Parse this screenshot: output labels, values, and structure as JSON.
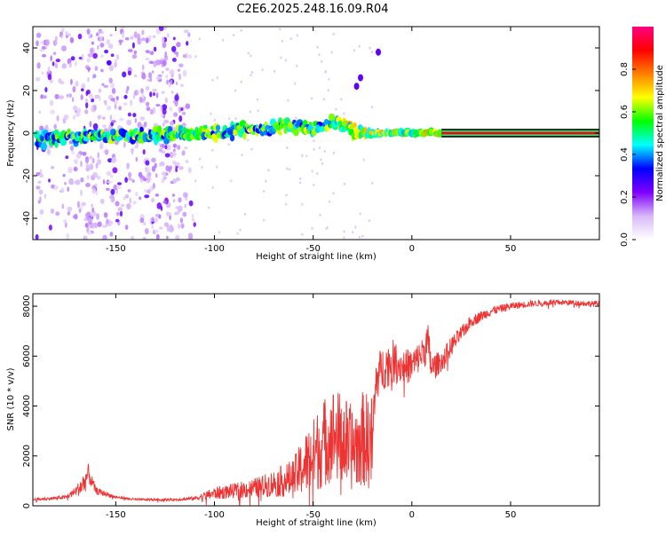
{
  "title": "C2E6.2025.248.16.09.R04",
  "chart_data": [
    {
      "type": "heatmap",
      "name": "spectrogram",
      "xlabel": "Height of straight line (km)",
      "ylabel": "Frequency (Hz)",
      "xlim": [
        -192,
        95
      ],
      "ylim": [
        -50,
        50
      ],
      "xticks": [
        -150,
        -100,
        -50,
        0,
        50
      ],
      "yticks": [
        -40,
        -20,
        0,
        20,
        40
      ],
      "colorbar": {
        "label": "Normalized spectral amplitude",
        "ticks": [
          "0.0",
          "0.2",
          "0.4",
          "0.6",
          "0.8"
        ],
        "tick_values": [
          0.0,
          0.2,
          0.4,
          0.6,
          0.8
        ],
        "range": [
          0,
          1
        ],
        "colors": [
          "#ffffff",
          "#d8b8f8",
          "#8000ff",
          "#0000ff",
          "#00ffff",
          "#00ff00",
          "#ffff00",
          "#ff8000",
          "#ff0000",
          "#ff0080"
        ]
      },
      "ridge": {
        "x": [
          -190,
          -170,
          -150,
          -130,
          -110,
          -100,
          -90,
          -80,
          -70,
          -60,
          -50,
          -45,
          -40,
          -35,
          -30,
          -25,
          -20,
          -10,
          0,
          10,
          20,
          50,
          94
        ],
        "freq": [
          -3,
          -2,
          -1,
          -1,
          0,
          0,
          1,
          2,
          3,
          3,
          2,
          4,
          5,
          3,
          1,
          1,
          0,
          0,
          0,
          0,
          0,
          0,
          0
        ]
      },
      "scatter_band": {
        "xmin": -190,
        "xmax": -110,
        "fmin": -50,
        "fmax": 50
      },
      "outliers": [
        {
          "x": -26,
          "freq": 26
        },
        {
          "x": -28,
          "freq": 22
        },
        {
          "x": -17,
          "freq": 38
        }
      ]
    },
    {
      "type": "line",
      "name": "snr",
      "xlabel": "Height of straight line (km)",
      "ylabel": "SNR (10 * v/v)",
      "xlim": [
        -192,
        95
      ],
      "ylim": [
        0,
        8500
      ],
      "xticks": [
        -150,
        -100,
        -50,
        0,
        50
      ],
      "yticks": [
        0,
        2000,
        4000,
        6000,
        8000
      ],
      "color": "#ee3333",
      "series": [
        {
          "name": "SNR",
          "x": [
            -192,
            -185,
            -175,
            -170,
            -166,
            -164,
            -160,
            -150,
            -140,
            -130,
            -120,
            -110,
            -100,
            -90,
            -80,
            -75,
            -70,
            -65,
            -60,
            -55,
            -50,
            -45,
            -40,
            -35,
            -30,
            -25,
            -20,
            -18,
            -15,
            -10,
            -5,
            0,
            5,
            8,
            10,
            15,
            20,
            25,
            30,
            40,
            50,
            60,
            70,
            80,
            90,
            95
          ],
          "y": [
            250,
            280,
            350,
            600,
            900,
            1300,
            600,
            350,
            250,
            250,
            250,
            300,
            500,
            600,
            700,
            800,
            900,
            1000,
            1100,
            1600,
            2000,
            2500,
            2900,
            2600,
            2300,
            2700,
            2500,
            5100,
            5500,
            5800,
            5600,
            5600,
            6100,
            6500,
            5500,
            5800,
            6400,
            6900,
            7400,
            7800,
            8000,
            8100,
            8150,
            8150,
            8100,
            8100
          ],
          "noise": [
            50,
            60,
            80,
            200,
            500,
            400,
            150,
            60,
            50,
            50,
            50,
            80,
            250,
            300,
            400,
            450,
            550,
            650,
            800,
            1200,
            1500,
            1800,
            1900,
            1900,
            1700,
            1900,
            2000,
            900,
            900,
            900,
            700,
            700,
            600,
            900,
            600,
            400,
            400,
            300,
            250,
            180,
            150,
            130,
            120,
            110,
            120,
            120
          ]
        }
      ]
    }
  ]
}
